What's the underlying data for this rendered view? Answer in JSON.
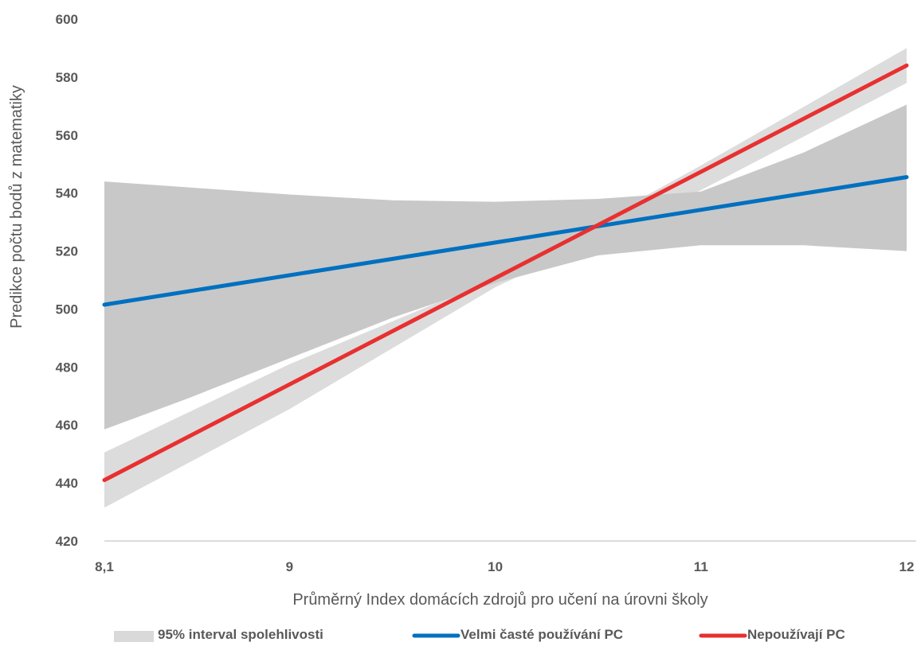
{
  "chart_data": {
    "type": "line",
    "title": "",
    "xlabel": "Průměrný Index domácích zdrojů pro učení na úrovni školy",
    "ylabel": "Predikce počtu bodů z matematiky",
    "xlim": [
      8.1,
      12
    ],
    "ylim": [
      420,
      600
    ],
    "x_ticks": [
      8.1,
      9,
      10,
      11,
      12
    ],
    "x_tick_labels": [
      "8,1",
      "9",
      "10",
      "11",
      "12"
    ],
    "y_ticks": [
      420,
      440,
      460,
      480,
      500,
      520,
      540,
      560,
      580,
      600
    ],
    "y_tick_labels": [
      "420",
      "440",
      "460",
      "480",
      "500",
      "520",
      "540",
      "560",
      "580",
      "600"
    ],
    "grid": false,
    "legend_position": "bottom",
    "series": [
      {
        "name": "Velmi časté používání PC",
        "color": "#0070C0",
        "x": [
          8.1,
          12
        ],
        "y": [
          501.5,
          545.5
        ],
        "ci": {
          "x": [
            8.1,
            8.5,
            9,
            9.5,
            10,
            10.5,
            11,
            11.5,
            12
          ],
          "upper": [
            544,
            542,
            539.5,
            537.5,
            537,
            538,
            540.5,
            554,
            570.5
          ],
          "lower": [
            458.5,
            469,
            483,
            497,
            509,
            518.5,
            522,
            522,
            520
          ]
        }
      },
      {
        "name": "Nepoužívají PC",
        "color": "#E83030",
        "x": [
          8.1,
          12
        ],
        "y": [
          441,
          584
        ],
        "ci": {
          "x": [
            8.1,
            9,
            10,
            11,
            12
          ],
          "upper": [
            450.5,
            481,
            510.5,
            549.5,
            590
          ],
          "lower": [
            431.5,
            465.5,
            507.5,
            541,
            578
          ]
        }
      }
    ],
    "legend": [
      {
        "label": "95% interval spolehlivosti",
        "kind": "band",
        "color": "#D9D9D9"
      },
      {
        "label": "Velmi časté používání PC",
        "kind": "line",
        "color": "#0070C0"
      },
      {
        "label": "Nepoužívají PC",
        "kind": "line",
        "color": "#E83030"
      }
    ]
  }
}
